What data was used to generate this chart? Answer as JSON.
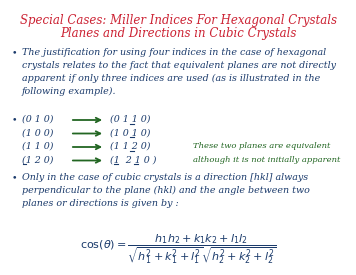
{
  "title_line1": "Special Cases: Miller Indices For Hexagonal Crystals",
  "title_line2": "Planes and Directions in Cubic Crystals",
  "title_color": "#cc2233",
  "bg_color": "#ffffff",
  "text_color": "#1a3a6b",
  "green_color": "#226622",
  "bullet1": "The justification for using four indices in the case of hexagonal\ncrystals relates to the fact that equivalent planes are not directly\napparent if only three indices are used (as is illustrated in the\nfollowing example).",
  "bullet2": "Only in the case of cubic crystals is a direction [hkl] always\nperpendicular to the plane (hkl) and the angle between two\nplanes or directions is given by :",
  "left_3": [
    "(0 1 0)",
    "(1 0 0)",
    "(1 1 0)",
    "(1 2 0)"
  ],
  "left_3_under": [
    [],
    [],
    [],
    [
      1
    ]
  ],
  "right_4": [
    "(0 1 1 0)",
    "(1 0 1 0)",
    "(1 1 2 0)",
    "(1  2 1 0 )"
  ],
  "right_4_under": [
    [
      3
    ],
    [
      3
    ],
    [
      3
    ],
    [
      1,
      3
    ]
  ],
  "note_line1": "These two planes are equivalent",
  "note_line2": "although it is not initially apparent",
  "formula": "$\\cos(\\theta) = \\dfrac{h_1h_2 + k_1k_2 + l_1l_2}{\\sqrt{h_1^2 + k_1^2 + l_1^2}\\sqrt{h_2^2 + k_2^2 + l_2^2}}$"
}
